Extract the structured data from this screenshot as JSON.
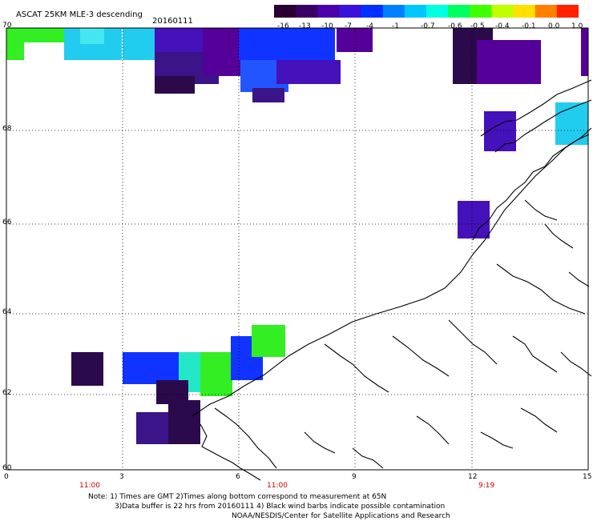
{
  "header": {
    "title": "ASCAT 25KM MLE-3 descending",
    "date": "20160111"
  },
  "colorbar": {
    "ticks": [
      "-16",
      "-13",
      "-10",
      "-7",
      "-4",
      "-1",
      "-0.7",
      "-0.6",
      "-0.5",
      "-0.4",
      "-0.1",
      "0.0",
      "1.0"
    ],
    "colors": [
      "#2a0033",
      "#3b0066",
      "#4a00aa",
      "#3a10dd",
      "#0030ff",
      "#0080ff",
      "#00c8ff",
      "#00ffe0",
      "#00ff60",
      "#40ff00",
      "#c0ff00",
      "#ffe000",
      "#ff8000",
      "#ff2000"
    ]
  },
  "axes": {
    "x_ticks": [
      "0",
      "3",
      "6",
      "9",
      "12",
      "15"
    ],
    "y_ticks": [
      "70",
      "68",
      "66",
      "64",
      "62",
      "60"
    ]
  },
  "pass_times": [
    "11:00",
    "11:00",
    "9:19"
  ],
  "notes": {
    "line1": "Note: 1) Times are GMT 2)Times along bottom correspond to measurement at 65N",
    "line2": "3)Data buffer is 22 hrs from 20160111 4) Black wind barbs indicate possible contamination",
    "line3": "NOAA/NESDIS/Center for Satellite Applications and Research"
  }
}
